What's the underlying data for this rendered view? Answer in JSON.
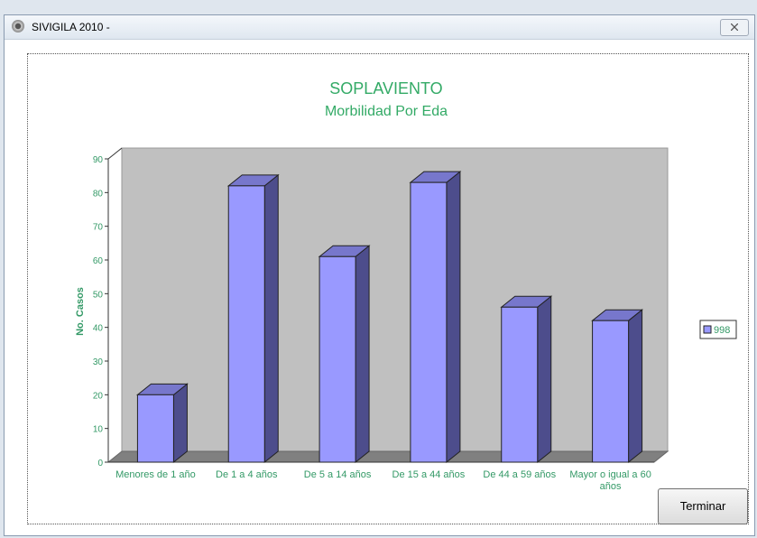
{
  "window": {
    "title": "SIVIGILA 2010 -",
    "button": "Terminar"
  },
  "chart_data": {
    "type": "bar3d",
    "title": "SOPLAVIENTO",
    "subtitle": "Morbilidad Por Eda",
    "y_label": "No. Casos",
    "categories": [
      "Menores de 1 año",
      "De 1 a 4 años",
      "De 5 a 14 años",
      "De 15 a 44 años",
      "De 44 a 59 años",
      "Mayor o igual a 60 años"
    ],
    "series": [
      {
        "name": "998",
        "color": "#9999ff",
        "values": [
          20,
          82,
          61,
          83,
          46,
          42
        ]
      }
    ],
    "ylim": [
      0,
      90
    ],
    "yticks": [
      0,
      10,
      20,
      30,
      40,
      50,
      60,
      70,
      80,
      90
    ],
    "legend": "right",
    "grid": false
  }
}
